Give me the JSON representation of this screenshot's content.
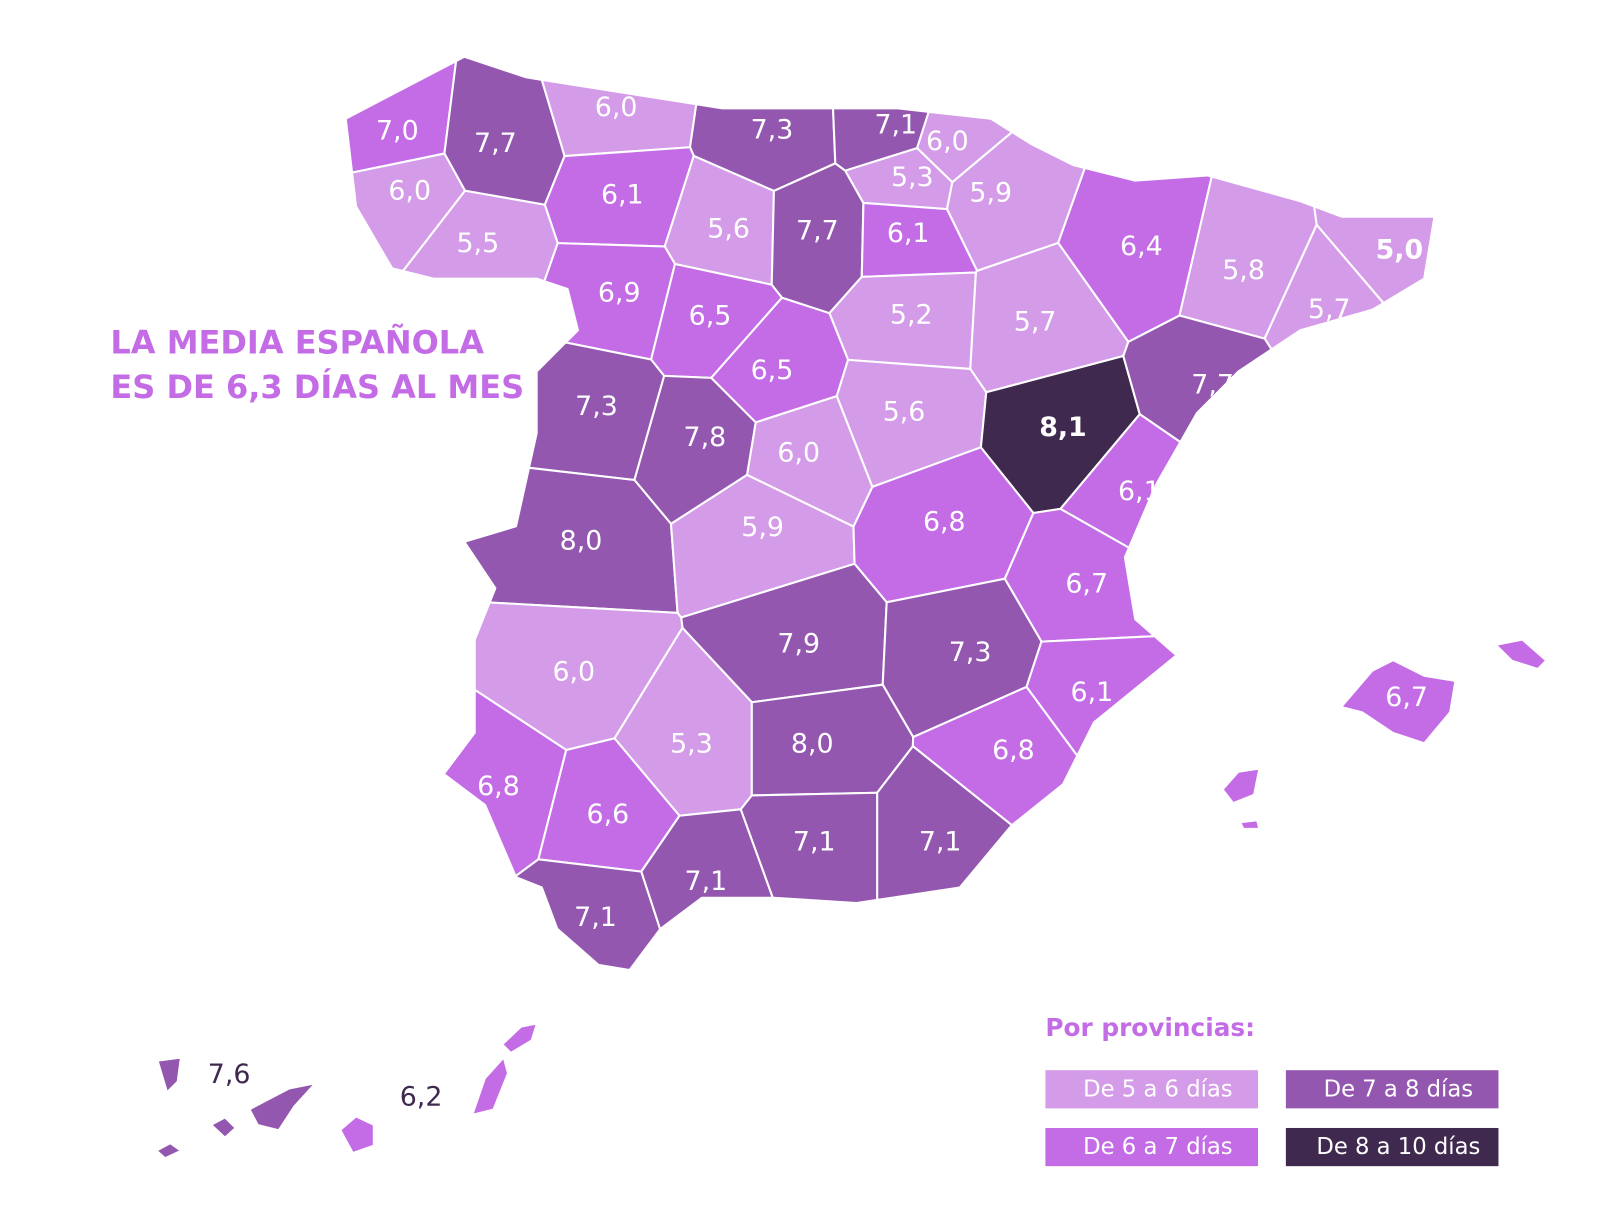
{
  "headline": [
    "LA MEDIA ESPAÑOLA",
    "ES DE 6,3 DÍAS AL MES"
  ],
  "provinces": [
    {
      "label": "7,0",
      "color": "#c46ce6"
    },
    {
      "label": "7,7",
      "color": "#9457b0"
    },
    {
      "label": "6,0",
      "color": "#d49be8"
    },
    {
      "label": "7,3",
      "color": "#9457b0"
    },
    {
      "label": "7,1",
      "color": "#9457b0"
    },
    {
      "label": "6,0",
      "color": "#d49be8"
    },
    {
      "label": "6,0",
      "color": "#d49be8"
    },
    {
      "label": "6,1",
      "color": "#c46ce6"
    },
    {
      "label": "5,6",
      "color": "#d49be8"
    },
    {
      "label": "7,7",
      "color": "#9457b0"
    },
    {
      "label": "5,3",
      "color": "#d49be8"
    },
    {
      "label": "5,9",
      "color": "#d49be8"
    },
    {
      "label": "6,1",
      "color": "#c46ce6"
    },
    {
      "label": "6,4",
      "color": "#c46ce6"
    },
    {
      "label": "5,8",
      "color": "#d49be8"
    },
    {
      "label": "5,0",
      "color": "#d49be8"
    },
    {
      "label": "5,5",
      "color": "#d49be8"
    },
    {
      "label": "6,9",
      "color": "#c46ce6"
    },
    {
      "label": "6,5",
      "color": "#c46ce6"
    },
    {
      "label": "5,2",
      "color": "#d49be8"
    },
    {
      "label": "5,7",
      "color": "#d49be8"
    },
    {
      "label": "5,7",
      "color": "#d49be8"
    },
    {
      "label": "6,5",
      "color": "#c46ce6"
    },
    {
      "label": "7,3",
      "color": "#9457b0"
    },
    {
      "label": "7,8",
      "color": "#9457b0"
    },
    {
      "label": "5,6",
      "color": "#d49be8"
    },
    {
      "label": "8,1",
      "color": "#40294f"
    },
    {
      "label": "7,7",
      "color": "#9457b0"
    },
    {
      "label": "6,0",
      "color": "#d49be8"
    },
    {
      "label": "6,1",
      "color": "#c46ce6"
    },
    {
      "label": "8,0",
      "color": "#9457b0"
    },
    {
      "label": "5,9",
      "color": "#d49be8"
    },
    {
      "label": "6,8",
      "color": "#c46ce6"
    },
    {
      "label": "6,7",
      "color": "#c46ce6"
    },
    {
      "label": "7,9",
      "color": "#9457b0"
    },
    {
      "label": "7,3",
      "color": "#9457b0"
    },
    {
      "label": "6,0",
      "color": "#d49be8"
    },
    {
      "label": "6,1",
      "color": "#c46ce6"
    },
    {
      "label": "5,3",
      "color": "#d49be8"
    },
    {
      "label": "8,0",
      "color": "#9457b0"
    },
    {
      "label": "6,8",
      "color": "#c46ce6"
    },
    {
      "label": "6,8",
      "color": "#c46ce6"
    },
    {
      "label": "6,6",
      "color": "#c46ce6"
    },
    {
      "label": "7,1",
      "color": "#9457b0"
    },
    {
      "label": "7,1",
      "color": "#9457b0"
    },
    {
      "label": "7,1",
      "color": "#9457b0"
    },
    {
      "label": "7,1",
      "color": "#9457b0"
    }
  ],
  "islands": [
    {
      "label": "6,7",
      "color": "#c46ce6"
    },
    {
      "label": "7,6",
      "color": "#9457b0"
    },
    {
      "label": "6,2",
      "color": "#c46ce6"
    }
  ],
  "legend": {
    "title": "Por provincias:",
    "items": [
      {
        "label": "De 5 a 6 días",
        "color": "#d49be8"
      },
      {
        "label": "De 7 a 8 días",
        "color": "#9457b0"
      },
      {
        "label": "De 6 a 7 días",
        "color": "#c46ce6"
      },
      {
        "label": "De 8 a 10 días",
        "color": "#40294f"
      }
    ]
  }
}
